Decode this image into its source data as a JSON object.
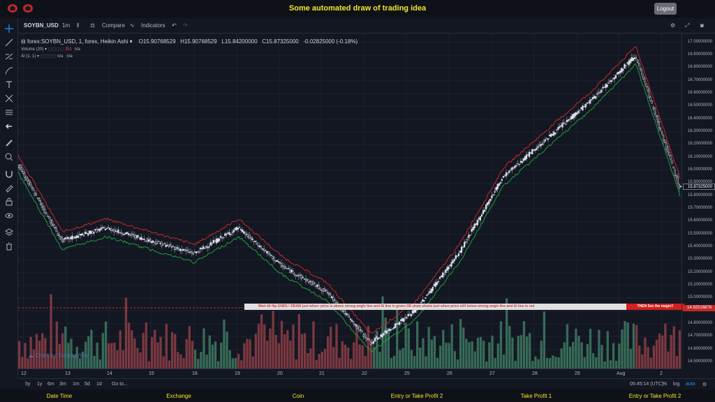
{
  "app": {
    "title": "Some automated draw of trading idea",
    "logout_label": "Logout"
  },
  "toolbar": {
    "symbol": "SOYBN_USD",
    "interval": "1m",
    "compare_label": "Compare",
    "indicators_label": "Indicators"
  },
  "legend": {
    "symbol_line": "forex:SOYBN_USD, 1, forex, Heikin Ashi",
    "open": "O15.90768529",
    "high": "H15.90768529",
    "low": "L15.84200000",
    "close": "C15.87325000",
    "change": "-0.02825000 (-0.18%)",
    "volume_label": "Volume (20)",
    "volume_value": "351",
    "volume_na": "n/a",
    "ai_label": "AI (1, 1)",
    "ai_na1": "n/a",
    "ai_na2": "n/a"
  },
  "banner": {
    "left_text": "Wait till flip ENDS  !   DRAW just when:  price is above strong angle line and AI line is green       OK        draw shorts just when price still below strong angle line and AI line is red",
    "right_text": "THEN See the magic!!"
  },
  "watermark": "Chart by TradingView",
  "price_axis": {
    "labels": [
      "17.00000000",
      "16.90000000",
      "16.80000000",
      "16.70000000",
      "16.60000000",
      "16.50000000",
      "16.40000000",
      "16.30000000",
      "16.20000000",
      "16.10000000",
      "16.00000000",
      "15.90000000",
      "15.80000000",
      "15.70000000",
      "15.60000000",
      "15.50000000",
      "15.40000000",
      "15.30000000",
      "15.20000000",
      "15.10000000",
      "15.00000000",
      "14.90000000",
      "14.80000000",
      "14.70000000",
      "14.60000000",
      "14.50000000"
    ],
    "current_price": "15.87325000",
    "line_price": "14.92516876"
  },
  "time_axis": {
    "labels": [
      "12",
      "13",
      "14",
      "15",
      "18",
      "19",
      "20",
      "21",
      "22",
      "25",
      "26",
      "27",
      "28",
      "29",
      "Aug",
      "2"
    ]
  },
  "range_bar": {
    "ranges": [
      "5y",
      "1y",
      "6m",
      "3m",
      "1m",
      "5d",
      "1d"
    ],
    "goto_label": "Go to...",
    "clock": "05:45:14 (UTC)",
    "percent_label": "%",
    "log_label": "log",
    "auto_label": "auto"
  },
  "footer": {
    "columns": [
      "Date Time",
      "Exchange",
      "Coin",
      "Entry or Take Profit 2",
      "Take Profit 1",
      "Entry or Take Profit 2"
    ]
  },
  "colors": {
    "up": "#e0e3eb",
    "down": "#131722",
    "ai_green": "#1e9e3e",
    "ai_red": "#c62828",
    "vol_up": "#3e7a62",
    "vol_down": "#8e3e45",
    "accent_title": "#f5e62a"
  },
  "chart_data": {
    "type": "candlestick",
    "symbol": "forex:SOYBN_USD",
    "ylim": [
      14.45,
      17.07
    ],
    "x": [
      "12",
      "13",
      "14",
      "15",
      "18",
      "19",
      "20",
      "21",
      "22",
      "25",
      "26",
      "27",
      "28",
      "29",
      "Aug",
      "2"
    ],
    "close_approx": [
      16.05,
      15.45,
      15.55,
      15.45,
      15.35,
      15.55,
      15.25,
      15.05,
      14.65,
      14.9,
      15.35,
      15.95,
      16.25,
      16.55,
      16.9,
      15.87
    ]
  }
}
